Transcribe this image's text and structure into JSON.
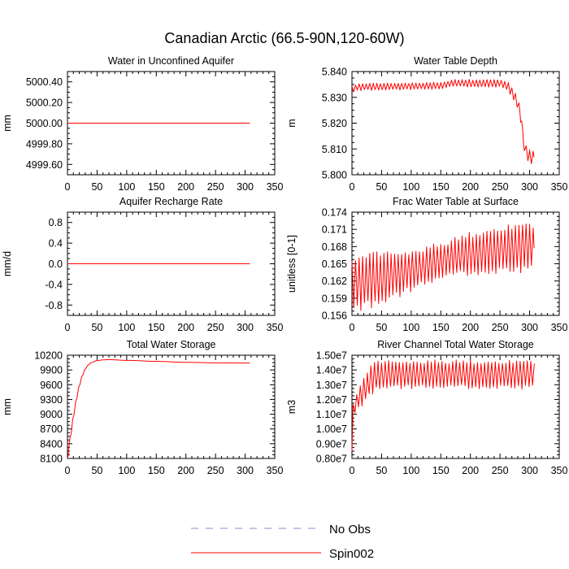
{
  "figure": {
    "title": "Canadian Arctic (66.5-90N,120-60W)",
    "line_color": "#ff0000",
    "axis_color": "#000000"
  },
  "legend": {
    "position": "bottom-center",
    "entries": [
      {
        "label": "No Obs",
        "style": "dashed",
        "color": "#8888cc"
      },
      {
        "label": "Spin002",
        "style": "solid",
        "color": "#ff0000"
      }
    ]
  },
  "chart_data": [
    {
      "id": "aquifer-water",
      "type": "line",
      "title": "Water in Unconfined Aquifer",
      "ylabel": "mm",
      "xlabel": "",
      "xlim": [
        0,
        350
      ],
      "ylim": [
        4999.5,
        5000.5
      ],
      "xticks": [
        "0",
        "50",
        "100",
        "150",
        "200",
        "250",
        "300",
        "350"
      ],
      "yticks": [
        4999.6,
        4999.8,
        5000.0,
        5000.2,
        5000.4
      ],
      "ytick_labels": [
        "4999.60",
        "4999.80",
        "5000.00",
        "5000.20",
        "5000.40"
      ],
      "series": [
        {
          "name": "Spin002",
          "shape": "constant",
          "x_range": [
            0,
            308
          ],
          "value": 5000.0
        }
      ]
    },
    {
      "id": "water-table-depth",
      "type": "line",
      "title": "Water Table Depth",
      "ylabel": "m",
      "xlabel": "",
      "xlim": [
        0,
        350
      ],
      "ylim": [
        5.8,
        5.84
      ],
      "xticks": [
        "0",
        "50",
        "100",
        "150",
        "200",
        "250",
        "300",
        "350"
      ],
      "yticks": [
        5.8,
        5.81,
        5.82,
        5.83,
        5.84
      ],
      "ytick_labels": [
        "5.800",
        "5.810",
        "5.820",
        "5.830",
        "5.840"
      ],
      "series": [
        {
          "name": "Spin002",
          "shape": "annual_cycle",
          "x_range": [
            0,
            308
          ],
          "base_pts": [
            [
              0,
              5.833
            ],
            [
              10,
              5.834
            ],
            [
              150,
              5.8345
            ],
            [
              170,
              5.8355
            ],
            [
              250,
              5.8355
            ],
            [
              262,
              5.8345
            ],
            [
              272,
              5.8315
            ],
            [
              280,
              5.8275
            ],
            [
              286,
              5.822
            ],
            [
              290,
              5.811
            ],
            [
              300,
              5.8065
            ],
            [
              308,
              5.807
            ]
          ],
          "amp_pts": [
            [
              0,
              0.0012
            ],
            [
              150,
              0.0012
            ],
            [
              250,
              0.0014
            ],
            [
              272,
              0.0018
            ],
            [
              285,
              0.0022
            ],
            [
              290,
              0.0012
            ],
            [
              300,
              0.003
            ],
            [
              308,
              0.0025
            ]
          ]
        }
      ]
    },
    {
      "id": "recharge-rate",
      "type": "line",
      "title": "Aquifer Recharge Rate",
      "ylabel": "mm/d",
      "xlabel": "",
      "xlim": [
        0,
        350
      ],
      "ylim": [
        -1.0,
        1.0
      ],
      "xticks": [
        "0",
        "50",
        "100",
        "150",
        "200",
        "250",
        "300",
        "350"
      ],
      "yticks": [
        -0.8,
        -0.4,
        0.0,
        0.4,
        0.8
      ],
      "ytick_labels": [
        "-0.8",
        "-0.4",
        "0.0",
        "0.4",
        "0.8"
      ],
      "series": [
        {
          "name": "Spin002",
          "shape": "constant",
          "x_range": [
            0,
            308
          ],
          "value": 0.0
        }
      ]
    },
    {
      "id": "frac-water-table",
      "type": "line",
      "title": "Frac Water Table at Surface",
      "ylabel": "unitless [0-1]",
      "xlabel": "",
      "xlim": [
        0,
        350
      ],
      "ylim": [
        0.156,
        0.174
      ],
      "xticks": [
        "0",
        "50",
        "100",
        "150",
        "200",
        "250",
        "300",
        "350"
      ],
      "yticks": [
        0.156,
        0.159,
        0.162,
        0.165,
        0.168,
        0.171,
        0.174
      ],
      "ytick_labels": [
        "0.156",
        "0.159",
        "0.162",
        "0.165",
        "0.168",
        "0.171",
        "0.174"
      ],
      "series": [
        {
          "name": "Spin002",
          "shape": "annual_cycle",
          "x_range": [
            0,
            308
          ],
          "base_pts": [
            [
              0,
              0.1615
            ],
            [
              50,
              0.1625
            ],
            [
              100,
              0.1638
            ],
            [
              150,
              0.1655
            ],
            [
              200,
              0.1668
            ],
            [
              250,
              0.1675
            ],
            [
              308,
              0.168
            ]
          ],
          "amp_pts": [
            [
              0,
              0.0043
            ],
            [
              50,
              0.0041
            ],
            [
              100,
              0.0032
            ],
            [
              150,
              0.0028
            ],
            [
              200,
              0.0033
            ],
            [
              250,
              0.0037
            ],
            [
              308,
              0.0038
            ]
          ]
        }
      ]
    },
    {
      "id": "total-water-storage",
      "type": "line",
      "title": "Total Water Storage",
      "ylabel": "mm",
      "xlabel": "",
      "xlim": [
        0,
        350
      ],
      "ylim": [
        8100,
        10200
      ],
      "xticks": [
        "0",
        "50",
        "100",
        "150",
        "200",
        "250",
        "300",
        "350"
      ],
      "yticks": [
        8100,
        8400,
        8700,
        9000,
        9300,
        9600,
        9900,
        10200
      ],
      "ytick_labels": [
        "8100",
        "8400",
        "8700",
        "9000",
        "9300",
        "9600",
        "9900",
        "10200"
      ],
      "series": [
        {
          "name": "Spin002",
          "shape": "smooth",
          "x_range": [
            0,
            308
          ],
          "pts": [
            [
              0,
              8100
            ],
            [
              5,
              8550
            ],
            [
              10,
              8950
            ],
            [
              15,
              9300
            ],
            [
              20,
              9580
            ],
            [
              25,
              9780
            ],
            [
              30,
              9920
            ],
            [
              35,
              10000
            ],
            [
              40,
              10050
            ],
            [
              50,
              10090
            ],
            [
              60,
              10105
            ],
            [
              70,
              10110
            ],
            [
              100,
              10095
            ],
            [
              150,
              10075
            ],
            [
              200,
              10055
            ],
            [
              250,
              10045
            ],
            [
              308,
              10040
            ]
          ]
        }
      ]
    },
    {
      "id": "river-channel-storage",
      "type": "line",
      "title": "River Channel Total Water Storage",
      "ylabel": "m3",
      "xlabel": "",
      "xlim": [
        0,
        350
      ],
      "ylim": [
        8000000,
        15000000
      ],
      "xticks": [
        "0",
        "50",
        "100",
        "150",
        "200",
        "250",
        "300",
        "350"
      ],
      "yticks": [
        8000000,
        9000000,
        10000000,
        11000000,
        12000000,
        13000000,
        14000000,
        15000000
      ],
      "ytick_labels": [
        "0.80e7",
        "0.90e7",
        "1.00e7",
        "1.10e7",
        "1.20e7",
        "1.30e7",
        "1.40e7",
        "1.50e7"
      ],
      "series": [
        {
          "name": "Spin002",
          "shape": "annual_cycle",
          "x_range": [
            2,
            308
          ],
          "base_pts": [
            [
              2,
              11300000
            ],
            [
              10,
              12000000
            ],
            [
              20,
              12600000
            ],
            [
              30,
              13200000
            ],
            [
              40,
              13600000
            ],
            [
              60,
              13700000
            ],
            [
              308,
              13700000
            ]
          ],
          "amp_pts": [
            [
              2,
              400000
            ],
            [
              10,
              600000
            ],
            [
              20,
              800000
            ],
            [
              30,
              900000
            ],
            [
              40,
              850000
            ],
            [
              308,
              850000
            ]
          ],
          "start_point": [
            0,
            8500000
          ]
        }
      ]
    }
  ]
}
